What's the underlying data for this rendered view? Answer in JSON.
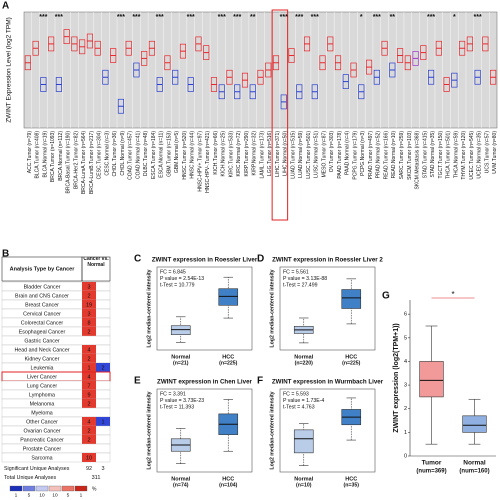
{
  "panel_labels": [
    "A",
    "B",
    "C",
    "D",
    "E",
    "F",
    "G"
  ],
  "chart_data": [
    {
      "type": "boxstrip",
      "ylabel": "ZWINT Expression Level (log2 TPM)",
      "categories": [
        "ACC.Tumor (n=79)",
        "BLCA.Tumor (n=408)",
        "BLCA.Normal (n=19)",
        "BRCA.Tumor (n=1093)",
        "BRCA.Normal (n=112)",
        "BRCA-Basal.Tumor (n=190)",
        "BRCA-Her2.Tumor (n=82)",
        "BRCA-LumA.Tumor (n=564)",
        "BRCA-LumB.Tumor (n=217)",
        "CESC.Tumor (n=304)",
        "CESC.Normal (n=3)",
        "CHOL.Tumor (n=36)",
        "CHOL.Normal (n=9)",
        "COAD.Tumor (n=457)",
        "COAD.Normal (n=41)",
        "DLBC.Tumor (n=48)",
        "ESCA.Tumor (n=184)",
        "ESCA.Normal (n=11)",
        "GBM.Tumor (n=153)",
        "GBM.Normal (n=5)",
        "HNSC.Tumor (n=520)",
        "HNSC.Normal (n=44)",
        "HNSC-HPV+.Tumor (n=97)",
        "HNSC-HPV-.Tumor (n=421)",
        "KICH.Tumor (n=66)",
        "KICH.Normal (n=25)",
        "KIRC.Tumor (n=533)",
        "KIRC.Normal (n=72)",
        "KIRP.Tumor (n=290)",
        "KIRP.Normal (n=32)",
        "LAML.Tumor (n=173)",
        "LGG.Tumor (n=516)",
        "LIHC.Tumor (n=371)",
        "LIHC.Normal (n=50)",
        "LUAD.Tumor (n=515)",
        "LUAD.Normal (n=59)",
        "LUSC.Tumor (n=501)",
        "LUSC.Normal (n=51)",
        "MESO.Tumor (n=87)",
        "OV.Tumor (n=303)",
        "PAAD.Tumor (n=178)",
        "PAAD.Normal (n=4)",
        "PCPG.Tumor (n=179)",
        "PCPG.Normal (n=3)",
        "PRAD.Tumor (n=497)",
        "PRAD.Normal (n=52)",
        "READ.Tumor (n=166)",
        "READ.Normal (n=10)",
        "SARC.Tumor (n=259)",
        "SKCM.Tumor (n=103)",
        "SKCM.Metastasis (n=368)",
        "STAD.Tumor (n=415)",
        "STAD.Normal (n=35)",
        "TGCT.Tumor (n=150)",
        "THCA.Tumor (n=501)",
        "THCA.Normal (n=59)",
        "THYM.Tumor (n=120)",
        "UCEC.Tumor (n=545)",
        "UCEC.Normal (n=35)",
        "UCS.Tumor (n=57)",
        "UVM.Tumor (n=80)"
      ],
      "values": [
        4.5,
        5.5,
        3,
        5.8,
        3,
        6.3,
        5.8,
        5.6,
        6.0,
        5.5,
        3.5,
        5,
        1.5,
        5.5,
        4,
        4.8,
        5.5,
        3,
        4.5,
        3.5,
        5.3,
        3,
        5.8,
        5.2,
        3,
        2.5,
        3.5,
        2.5,
        3.3,
        2.5,
        3.5,
        4,
        4.5,
        1.8,
        5,
        2.5,
        5.8,
        2.5,
        4.5,
        5.8,
        4.5,
        3.2,
        4,
        2.5,
        4.2,
        3.5,
        5.5,
        4,
        5,
        4.5,
        4.8,
        5.2,
        3.5,
        5.5,
        3,
        3.3,
        5.5,
        5.8,
        3.5,
        5.8,
        3.5
      ],
      "colors": [
        "#e8262b",
        "#e8262b",
        "#2a3fd1",
        "#e8262b",
        "#2a3fd1",
        "#e8262b",
        "#e8262b",
        "#e8262b",
        "#e8262b",
        "#e8262b",
        "#2a3fd1",
        "#e8262b",
        "#2a3fd1",
        "#e8262b",
        "#2a3fd1",
        "#e8262b",
        "#e8262b",
        "#2a3fd1",
        "#e8262b",
        "#2a3fd1",
        "#e8262b",
        "#2a3fd1",
        "#e8262b",
        "#e8262b",
        "#e8262b",
        "#2a3fd1",
        "#e8262b",
        "#2a3fd1",
        "#e8262b",
        "#2a3fd1",
        "#e8262b",
        "#e8262b",
        "#e8262b",
        "#2a3fd1",
        "#e8262b",
        "#2a3fd1",
        "#e8262b",
        "#2a3fd1",
        "#e8262b",
        "#e8262b",
        "#e8262b",
        "#2a3fd1",
        "#e8262b",
        "#2a3fd1",
        "#e8262b",
        "#2a3fd1",
        "#e8262b",
        "#2a3fd1",
        "#e8262b",
        "#e8262b",
        "#a033c8",
        "#e8262b",
        "#2a3fd1",
        "#e8262b",
        "#e8262b",
        "#2a3fd1",
        "#e8262b",
        "#e8262b",
        "#2a3fd1",
        "#e8262b",
        "#e8262b"
      ],
      "significance": [
        null,
        null,
        "***",
        null,
        "***",
        null,
        null,
        null,
        null,
        null,
        null,
        null,
        "***",
        null,
        "***",
        null,
        null,
        "***",
        null,
        null,
        null,
        "***",
        null,
        null,
        null,
        "***",
        null,
        "***",
        null,
        "**",
        null,
        null,
        null,
        "***",
        null,
        "***",
        null,
        "***",
        null,
        null,
        null,
        null,
        null,
        "*",
        null,
        "***",
        null,
        "**",
        null,
        null,
        null,
        null,
        "***",
        null,
        null,
        "*",
        null,
        null,
        "***",
        null,
        null
      ],
      "ylim": [
        0,
        8
      ]
    },
    {
      "type": "box",
      "title": "ZWINT expression in Roessler Liver",
      "stats_text": [
        "FC = 6.845",
        "P value = 2.54E-13",
        "t-Test = 10.779"
      ],
      "ylabel": "Log2 median-centered intensity",
      "categories": [
        "Normal",
        "HCC"
      ],
      "counts": [
        "(n=21)",
        "(n=225)"
      ],
      "boxes": [
        {
          "min": -1.9,
          "q1": -1.3,
          "median": -0.9,
          "q3": -0.6,
          "max": 0.1
        },
        {
          "min": 0.0,
          "q1": 1.0,
          "median": 1.7,
          "q3": 2.3,
          "max": 3.2
        }
      ],
      "colors": [
        "#b9cde9",
        "#3f80c6"
      ],
      "ylim": [
        -2.5,
        4
      ]
    },
    {
      "type": "box",
      "title": "ZWINT expression in Roessler Liver 2",
      "stats_text": [
        "FC = 5.561",
        "P value = 3.13E-88",
        "t-Test = 27.499"
      ],
      "ylabel": "Log2 median-centered intensity",
      "categories": [
        "Normal",
        "HCC"
      ],
      "counts": [
        "(n=220)",
        "(n=225)"
      ],
      "boxes": [
        {
          "min": -1.4,
          "q1": -0.6,
          "median": -0.3,
          "q3": 0.0,
          "max": 0.7
        },
        {
          "min": 0.2,
          "q1": 1.5,
          "median": 2.4,
          "q3": 3.1,
          "max": 4.0
        }
      ],
      "colors": [
        "#b9cde9",
        "#3f80c6"
      ],
      "ylim": [
        -2,
        5
      ]
    },
    {
      "type": "box",
      "title": "ZWINT expression in Chen Liver",
      "stats_text": [
        "FC = 3.391",
        "P value = 3.73E-23",
        "t-Test = 11.393"
      ],
      "ylabel": "Log2 median-centered intensity",
      "categories": [
        "Normal",
        "HCC"
      ],
      "counts": [
        "(n=74)",
        "(n=104)"
      ],
      "boxes": [
        {
          "min": -1.1,
          "q1": -0.5,
          "median": -0.2,
          "q3": 0.1,
          "max": 0.6
        },
        {
          "min": -0.5,
          "q1": 0.3,
          "median": 0.8,
          "q3": 1.3,
          "max": 2.0
        }
      ],
      "colors": [
        "#b9cde9",
        "#3f80c6"
      ],
      "ylim": [
        -1.5,
        2.5
      ]
    },
    {
      "type": "box",
      "title": "ZWINT expression in Wurmbach Liver",
      "stats_text": [
        "FC = 5.593",
        "P value = 1.73E-4",
        "t-Test = 4.763"
      ],
      "ylabel": "Log2 median-centered intensity",
      "categories": [
        "Normal",
        "HCC"
      ],
      "counts": [
        "(n=10)",
        "(n=35)"
      ],
      "boxes": [
        {
          "min": -2.5,
          "q1": -1.5,
          "median": -0.4,
          "q3": 0.3,
          "max": 0.8
        },
        {
          "min": -0.5,
          "q1": 0.7,
          "median": 1.3,
          "q3": 1.9,
          "max": 2.8
        }
      ],
      "colors": [
        "#b9cde9",
        "#3f80c6"
      ],
      "ylim": [
        -3,
        3.5
      ]
    },
    {
      "type": "box",
      "ylabel": "ZWINT expression (log2(TPM+1))",
      "categories": [
        "Tumor",
        "Normal"
      ],
      "counts": [
        "(num=369)",
        "(num=160)"
      ],
      "boxes": [
        {
          "min": 0.5,
          "q1": 2.5,
          "median": 3.2,
          "q3": 4.0,
          "max": 5.5
        },
        {
          "min": 0.5,
          "q1": 1.0,
          "median": 1.3,
          "q3": 1.7,
          "max": 2.4
        }
      ],
      "colors": [
        "#f29a9a",
        "#8fb0e0"
      ],
      "annotation": "*",
      "ylim": [
        0,
        6.6
      ],
      "yticks": [
        0,
        1,
        2,
        3,
        4,
        5,
        6
      ]
    }
  ],
  "table": {
    "header": [
      "Analysis Type by Cancer",
      "Cancer vs. Normal"
    ],
    "rows": [
      {
        "name": "Bladder Cancer",
        "up": 3,
        "down": null
      },
      {
        "name": "Brain and CNS Cancer",
        "up": 2,
        "down": null
      },
      {
        "name": "Breast Cancer",
        "up": 19,
        "down": null
      },
      {
        "name": "Cervical Cancer",
        "up": 3,
        "down": null
      },
      {
        "name": "Colorectal Cancer",
        "up": 8,
        "down": null
      },
      {
        "name": "Esophageal Cancer",
        "up": 2,
        "down": null
      },
      {
        "name": "Gastric Cancer",
        "up": null,
        "down": null
      },
      {
        "name": "Head and Neck Cancer",
        "up": 4,
        "down": null
      },
      {
        "name": "Kidney Cancer",
        "up": 2,
        "down": null
      },
      {
        "name": "Leukemia",
        "up": 1,
        "down": 2
      },
      {
        "name": "Liver Cancer",
        "up": 4,
        "down": null
      },
      {
        "name": "Lung Cancer",
        "up": 7,
        "down": null
      },
      {
        "name": "Lymphoma",
        "up": 9,
        "down": null
      },
      {
        "name": "Melanoma",
        "up": 2,
        "down": null
      },
      {
        "name": "Myeloma",
        "up": null,
        "down": null
      },
      {
        "name": "Other Cancer",
        "up": 4,
        "down": 1
      },
      {
        "name": "Ovarian Cancer",
        "up": 2,
        "down": null
      },
      {
        "name": "Pancreatic Cancer",
        "up": 2,
        "down": null
      },
      {
        "name": "Prostate Cancer",
        "up": null,
        "down": null
      },
      {
        "name": "Sarcoma",
        "up": 10,
        "down": null
      }
    ],
    "summary": [
      {
        "label": "Significant Unique Analyses",
        "up": 92,
        "down": 3
      },
      {
        "label": "Total Unique Analyses",
        "total": 311
      }
    ],
    "up_color": "#e23a2e",
    "down_color": "#3146d6",
    "legend_labels": [
      "1",
      "5",
      "10",
      "10",
      "5",
      "1"
    ],
    "legend_unit": "%"
  }
}
